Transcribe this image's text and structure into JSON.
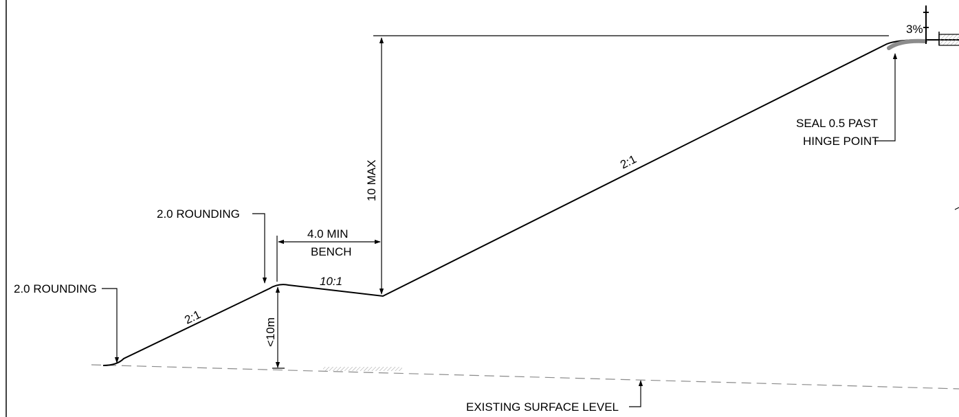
{
  "labels": {
    "rounding_left": "2.0 ROUNDING",
    "rounding_mid": "2.0 ROUNDING",
    "bench_line1": "4.0 MIN",
    "bench_line2": "BENCH",
    "max_height": "10 MAX",
    "lower_height": "<10m",
    "seal_line1": "SEAL 0.5 PAST",
    "seal_line2": "HINGE POINT",
    "existing_surface": "EXISTING SURFACE LEVEL",
    "crossfall": "3%"
  },
  "slopes": {
    "lower_batter": "2:1",
    "bench": "10:1",
    "upper_batter": "2:1"
  },
  "colors": {
    "line": "#000000",
    "ground": "#8a8a8a",
    "seal": "#8c8c8c"
  }
}
